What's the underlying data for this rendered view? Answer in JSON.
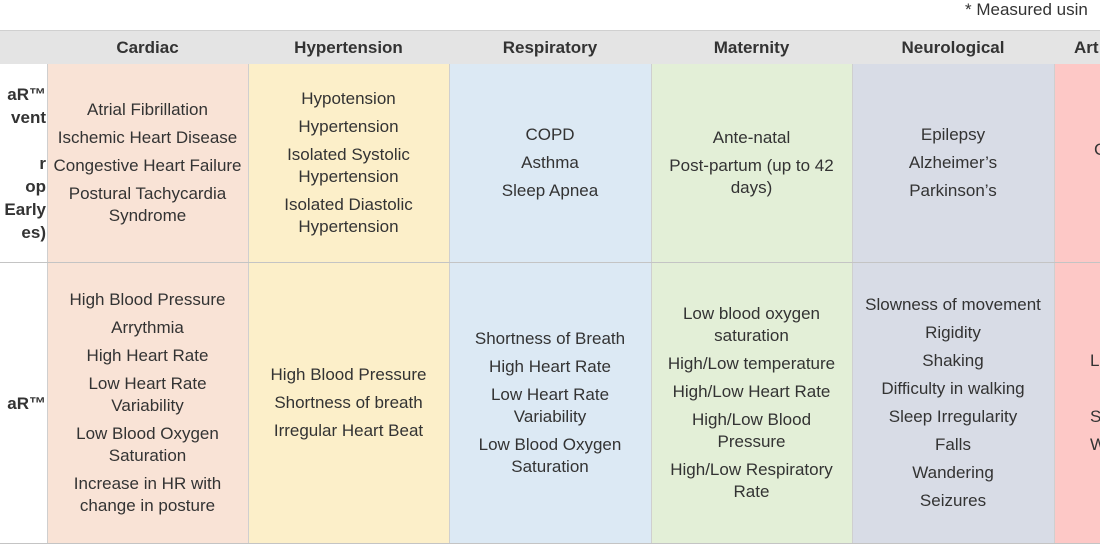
{
  "footnote": "* Measured usin",
  "headers": {
    "cardiac": "Cardiac",
    "hypertension": "Hypertension",
    "respiratory": "Respiratory",
    "maternity": "Maternity",
    "neurological": "Neurological",
    "arthritis": "Art"
  },
  "row_labels": {
    "row1": [
      "aR™",
      "vent",
      "",
      "r",
      "op",
      "Early",
      "es)"
    ],
    "row2": [
      "aR™"
    ]
  },
  "row1": {
    "cardiac": [
      "Atrial Fibrillation",
      "Ischemic Heart Disease",
      "Congestive Heart Failure",
      "Postural Tachycardia Syndrome"
    ],
    "hypertension": [
      "Hypotension",
      "Hypertension",
      "Isolated Systolic Hypertension",
      "Isolated Diastolic Hypertension"
    ],
    "respiratory": [
      "COPD",
      "Asthma",
      "Sleep Apnea"
    ],
    "maternity": [
      "Ante-natal",
      "Post-partum (up to 42 days)"
    ],
    "neurological": [
      "Epilepsy",
      "Alzheimer’s",
      "Parkinson’s"
    ],
    "arthritis": [
      "C"
    ]
  },
  "row2": {
    "cardiac": [
      "High Blood Pressure",
      "Arrythmia",
      "High Heart Rate",
      "Low Heart Rate Variability",
      "Low Blood Oxygen Saturation",
      "Increase in HR with change in posture"
    ],
    "hypertension": [
      "High Blood Pressure",
      "Shortness of breath",
      "Irregular Heart Beat"
    ],
    "respiratory": [
      "Shortness of Breath",
      "High Heart Rate",
      "Low Heart Rate Variability",
      "Low Blood Oxygen Saturation"
    ],
    "maternity": [
      "Low blood oxygen saturation",
      "High/Low temperature",
      "High/Low Heart Rate",
      "High/Low Blood Pressure",
      "High/Low Respiratory Rate"
    ],
    "neurological": [
      "Slowness of movement",
      "Rigidity",
      "Shaking",
      "Difficulty in walking",
      "Sleep Irregularity",
      "Falls",
      "Wandering",
      "Seizures"
    ],
    "arthritis": [
      "L",
      "",
      "Sec",
      "We"
    ]
  },
  "colors": {
    "cardiac": "#f9e3d6",
    "hypertension": "#fcefc9",
    "respiratory": "#dce9f4",
    "maternity": "#e3efd7",
    "neurological": "#d8dce6",
    "arthritis": "#fdc8c6",
    "header": "#e4e4e4"
  }
}
